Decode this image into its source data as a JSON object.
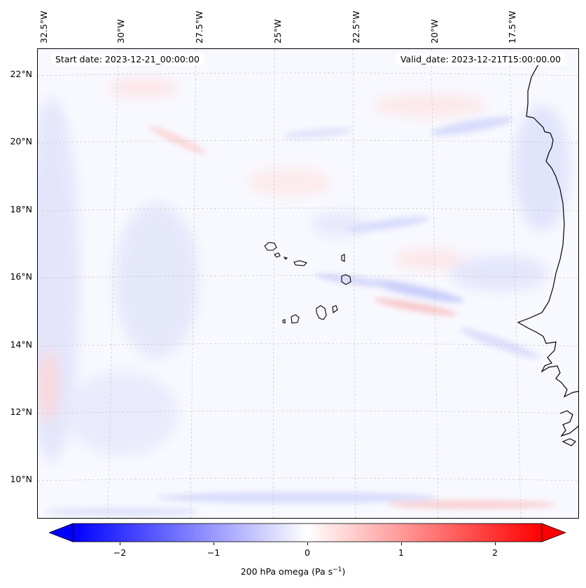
{
  "map": {
    "lon_labels": [
      "32.5°W",
      "30°W",
      "27.5°W",
      "25°W",
      "22.5°W",
      "20°W",
      "17.5°W"
    ],
    "lat_labels": [
      "22°N",
      "20°N",
      "18°N",
      "16°N",
      "14°N",
      "12°N",
      "10°N"
    ],
    "start_date": "Start date: 2023-12-21_00:00:00",
    "valid_date": "Valid_date: 2023-12-21T15:00:00.00",
    "coastline_color": "#000000",
    "gridline_color": "#c8c8c8"
  },
  "colorbar": {
    "ticks": [
      "−2",
      "−1",
      "0",
      "1",
      "2"
    ],
    "tick_values": [
      -2,
      -1,
      0,
      1,
      2
    ],
    "range": [
      -2.5,
      2.5
    ],
    "colormap": "bwr",
    "low_color": "#0000ff",
    "mid_color": "#ffffff",
    "high_color": "#ff0000",
    "label_main": "200 hPa omega (Pa s",
    "label_exp": "−1",
    "label_end": ")"
  }
}
